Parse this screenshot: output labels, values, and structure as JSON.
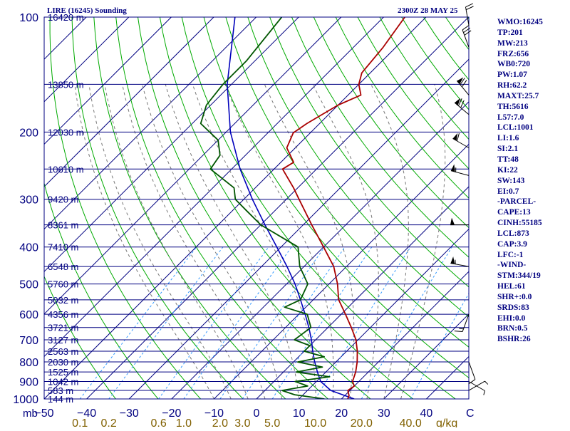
{
  "header": {
    "title": "LIRE (16245) Sounding",
    "valid_time": "2300Z 28 MAY 25"
  },
  "index_panel": [
    "WMO:16245",
    "TP:201",
    "MW:213",
    "FRZ:656",
    "WB0:720",
    "PW:1.07",
    "RH:62.2",
    "MAXT:25.7",
    "TH:5616",
    "L57:7.0",
    "LCL:1001",
    "LI:1.6",
    "SI:2.1",
    "TT:48",
    "KI:22",
    "SW:143",
    "EI:0.7",
    "-PARCEL-",
    "CAPE:13",
    "CINH:55185",
    "LCL:873",
    "CAP:3.9",
    "LFC:-1",
    "-WIND-",
    "STM:344/19",
    "HEL:61",
    "SHR+:0.0",
    "SRDS:83",
    "EHI:0.0",
    "BRN:0.5",
    "BSHR:26"
  ],
  "colors": {
    "frame": "#000080",
    "text": "#000080",
    "isotherm": "#000080",
    "dry_adiabat": "#00aa00",
    "moist_adiabat": "#777777",
    "mixing_ratio": "#3399ff",
    "temperature": "#aa0000",
    "dewpoint": "#005500",
    "parcel": "#0000bb",
    "wind_barb": "#000000",
    "mixing_label": "#806000"
  },
  "icons": {
    "wind_barbs": "wind-barb-icon"
  },
  "chart_data": {
    "type": "skew-t",
    "x_unit_label": "C",
    "y_unit_label": "mb",
    "mixing_ratio_unit_label": "g/kg",
    "pressure_range": [
      1000,
      100
    ],
    "temperature_range_at_1000": [
      -50,
      50
    ],
    "isobars": [
      {
        "p": 100,
        "label": "100",
        "height_label": "16420 m"
      },
      {
        "p": 150,
        "label": "",
        "height_label": "13850 m"
      },
      {
        "p": 200,
        "label": "200",
        "height_label": "12030 m"
      },
      {
        "p": 250,
        "label": "",
        "height_label": "10610 m"
      },
      {
        "p": 300,
        "label": "300",
        "height_label": "9420 m"
      },
      {
        "p": 350,
        "label": "",
        "height_label": "8361 m"
      },
      {
        "p": 400,
        "label": "400",
        "height_label": "7410 m"
      },
      {
        "p": 450,
        "label": "",
        "height_label": "6548 m"
      },
      {
        "p": 500,
        "label": "500",
        "height_label": "5760 m"
      },
      {
        "p": 550,
        "label": "",
        "height_label": "5032 m"
      },
      {
        "p": 600,
        "label": "600",
        "height_label": "4356 m"
      },
      {
        "p": 650,
        "label": "",
        "height_label": "3721 m"
      },
      {
        "p": 700,
        "label": "700",
        "height_label": "3127 m"
      },
      {
        "p": 750,
        "label": "",
        "height_label": "2563 m"
      },
      {
        "p": 800,
        "label": "800",
        "height_label": "2030 m"
      },
      {
        "p": 850,
        "label": "",
        "height_label": "1525 m"
      },
      {
        "p": 900,
        "label": "900",
        "height_label": "1042 m"
      },
      {
        "p": 950,
        "label": "",
        "height_label": "583 m"
      },
      {
        "p": 1000,
        "label": "1000",
        "height_label": "144 m"
      }
    ],
    "temperature_ticks": [
      {
        "t": -50,
        "label": "−50"
      },
      {
        "t": -40,
        "label": "−40"
      },
      {
        "t": -30,
        "label": "−30"
      },
      {
        "t": -20,
        "label": "−20"
      },
      {
        "t": -10,
        "label": "−10"
      },
      {
        "t": 0,
        "label": "0"
      },
      {
        "t": 10,
        "label": "10"
      },
      {
        "t": 20,
        "label": "20"
      },
      {
        "t": 30,
        "label": "30"
      },
      {
        "t": 40,
        "label": "40"
      }
    ],
    "mixing_ratio_labels": [
      {
        "w": 0.1,
        "label": "0.1"
      },
      {
        "w": 0.2,
        "label": "0.2"
      },
      {
        "w": 0.6,
        "label": "0.6"
      },
      {
        "w": 1.0,
        "label": "1.0"
      },
      {
        "w": 2.0,
        "label": "2.0"
      },
      {
        "w": 3.0,
        "label": "3.0"
      },
      {
        "w": 5.0,
        "label": "5.0"
      },
      {
        "w": 10.0,
        "label": "10.0"
      },
      {
        "w": 20.0,
        "label": "20.0"
      },
      {
        "w": 40.0,
        "label": "40.0"
      }
    ],
    "temperature_profile": [
      {
        "p": 1000,
        "t": 21.5
      },
      {
        "p": 980,
        "t": 21
      },
      {
        "p": 950,
        "t": 19.5
      },
      {
        "p": 925,
        "t": 20
      },
      {
        "p": 900,
        "t": 18.5
      },
      {
        "p": 850,
        "t": 17
      },
      {
        "p": 800,
        "t": 15
      },
      {
        "p": 750,
        "t": 12.5
      },
      {
        "p": 700,
        "t": 9.5
      },
      {
        "p": 650,
        "t": 5.5
      },
      {
        "p": 600,
        "t": 1
      },
      {
        "p": 550,
        "t": -4
      },
      {
        "p": 500,
        "t": -8
      },
      {
        "p": 450,
        "t": -13
      },
      {
        "p": 400,
        "t": -20
      },
      {
        "p": 350,
        "t": -28
      },
      {
        "p": 300,
        "t": -37
      },
      {
        "p": 280,
        "t": -41
      },
      {
        "p": 250,
        "t": -48
      },
      {
        "p": 240,
        "t": -47
      },
      {
        "p": 220,
        "t": -52
      },
      {
        "p": 201,
        "t": -54
      },
      {
        "p": 190,
        "t": -53
      },
      {
        "p": 170,
        "t": -50
      },
      {
        "p": 160,
        "t": -47
      },
      {
        "p": 150,
        "t": -50
      },
      {
        "p": 140,
        "t": -52
      },
      {
        "p": 120,
        "t": -53
      },
      {
        "p": 100,
        "t": -55
      }
    ],
    "dewpoint_profile": [
      {
        "p": 1000,
        "t": 16
      },
      {
        "p": 975,
        "t": 8
      },
      {
        "p": 950,
        "t": 4
      },
      {
        "p": 925,
        "t": 9
      },
      {
        "p": 900,
        "t": 5
      },
      {
        "p": 875,
        "t": 12
      },
      {
        "p": 850,
        "t": 3
      },
      {
        "p": 825,
        "t": 8
      },
      {
        "p": 800,
        "t": 1
      },
      {
        "p": 775,
        "t": 6
      },
      {
        "p": 750,
        "t": 0
      },
      {
        "p": 725,
        "t": 0
      },
      {
        "p": 700,
        "t": -5
      },
      {
        "p": 650,
        "t": -4
      },
      {
        "p": 600,
        "t": -8
      },
      {
        "p": 575,
        "t": -15
      },
      {
        "p": 550,
        "t": -13
      },
      {
        "p": 500,
        "t": -15
      },
      {
        "p": 450,
        "t": -21
      },
      {
        "p": 400,
        "t": -26
      },
      {
        "p": 350,
        "t": -40
      },
      {
        "p": 320,
        "t": -47
      },
      {
        "p": 300,
        "t": -52
      },
      {
        "p": 280,
        "t": -55
      },
      {
        "p": 250,
        "t": -65
      },
      {
        "p": 230,
        "t": -66
      },
      {
        "p": 210,
        "t": -70
      },
      {
        "p": 190,
        "t": -78
      },
      {
        "p": 170,
        "t": -81
      },
      {
        "p": 150,
        "t": -82
      },
      {
        "p": 130,
        "t": -82
      },
      {
        "p": 100,
        "t": -84
      }
    ],
    "parcel_profile": [
      {
        "p": 1000,
        "t": 23
      },
      {
        "p": 950,
        "t": 15.5
      },
      {
        "p": 900,
        "t": 11
      },
      {
        "p": 850,
        "t": 8
      },
      {
        "p": 800,
        "t": 5
      },
      {
        "p": 750,
        "t": 2
      },
      {
        "p": 700,
        "t": -1
      },
      {
        "p": 650,
        "t": -4.5
      },
      {
        "p": 600,
        "t": -8.5
      },
      {
        "p": 550,
        "t": -13
      },
      {
        "p": 500,
        "t": -18
      },
      {
        "p": 450,
        "t": -24
      },
      {
        "p": 400,
        "t": -31
      },
      {
        "p": 350,
        "t": -39
      },
      {
        "p": 300,
        "t": -48
      },
      {
        "p": 250,
        "t": -58
      },
      {
        "p": 200,
        "t": -69
      },
      {
        "p": 150,
        "t": -81
      },
      {
        "p": 100,
        "t": -95
      }
    ],
    "wind_profile": [
      {
        "p": 950,
        "dir": 60,
        "kt": 5
      },
      {
        "p": 900,
        "dir": 120,
        "kt": 5
      },
      {
        "p": 800,
        "dir": 160,
        "kt": 10
      },
      {
        "p": 600,
        "dir": 200,
        "kt": 15
      },
      {
        "p": 450,
        "dir": 280,
        "kt": 55
      },
      {
        "p": 350,
        "dir": 270,
        "kt": 50
      },
      {
        "p": 260,
        "dir": 285,
        "kt": 55
      },
      {
        "p": 220,
        "dir": 300,
        "kt": 60
      },
      {
        "p": 180,
        "dir": 310,
        "kt": 70
      },
      {
        "p": 160,
        "dir": 320,
        "kt": 70
      },
      {
        "p": 120,
        "dir": 340,
        "kt": 30
      },
      {
        "p": 105,
        "dir": 350,
        "kt": 20
      }
    ]
  }
}
